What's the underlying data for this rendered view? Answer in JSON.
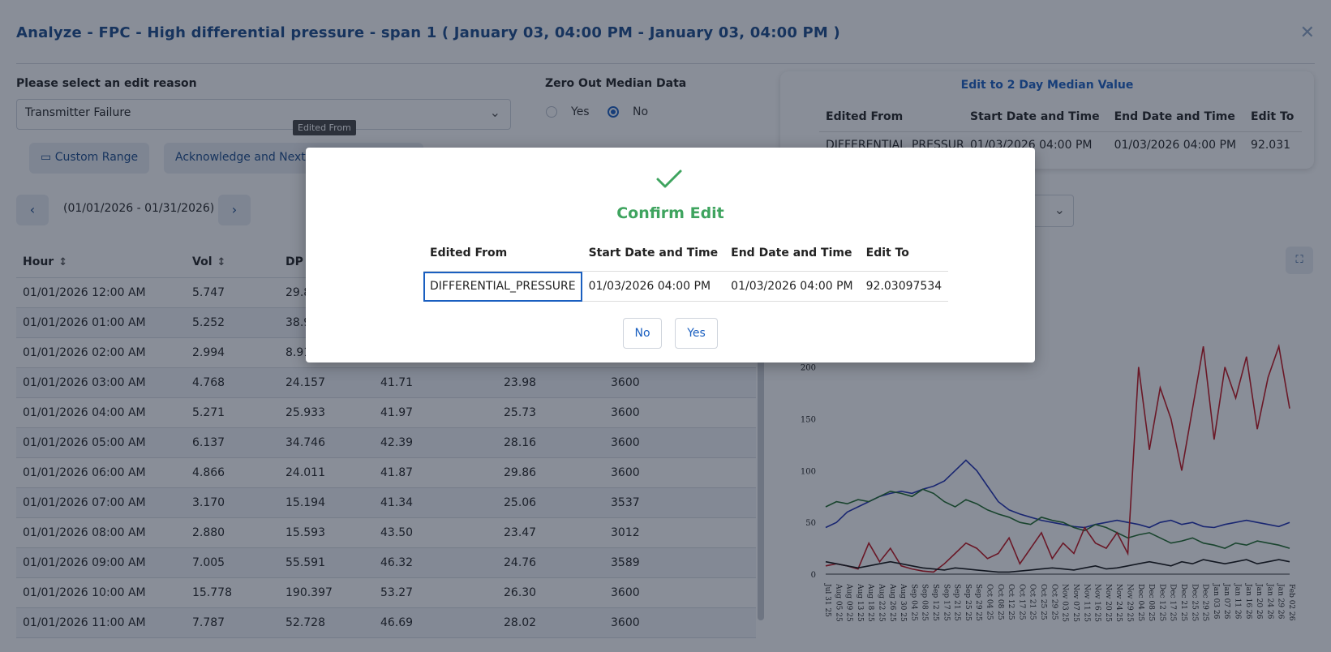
{
  "header": {
    "title": "Analyze - FPC - High differential pressure - span 1 ( January 03, 04:00 PM - January 03, 04:00 PM )",
    "close_icon": "close-icon"
  },
  "form": {
    "reason_label": "Please select an edit reason",
    "reason_value": "Transmitter Failure",
    "zero_label": "Zero Out Median Data",
    "zero_yes": "Yes",
    "zero_no": "No",
    "zero_selected": "No",
    "tooltip": "Edited From"
  },
  "toolbar": {
    "custom_range": "Custom Range",
    "acknowledge": "Acknowledge and Next",
    "date_range": "(01/01/2026 - 01/31/2026)"
  },
  "median_card": {
    "title": "Edit to 2 Day Median Value",
    "headers": [
      "Edited From",
      "Start Date and Time",
      "End Date and Time",
      "Edit To"
    ],
    "row": [
      "DIFFERENTIAL_PRESSURE",
      "01/03/2026 04:00 PM",
      "01/03/2026 04:00 PM",
      "92.031"
    ]
  },
  "table": {
    "headers": [
      "Hour",
      "Vol",
      "DP"
    ],
    "rows": [
      [
        "01/01/2026 12:00 AM",
        "5.747",
        "29.8",
        "",
        "",
        ""
      ],
      [
        "01/01/2026 01:00 AM",
        "5.252",
        "38.9",
        "",
        "",
        ""
      ],
      [
        "01/01/2026 02:00 AM",
        "2.994",
        "8.91",
        "",
        "",
        ""
      ],
      [
        "01/01/2026 03:00 AM",
        "4.768",
        "24.157",
        "41.71",
        "23.98",
        "3600"
      ],
      [
        "01/01/2026 04:00 AM",
        "5.271",
        "25.933",
        "41.97",
        "25.73",
        "3600"
      ],
      [
        "01/01/2026 05:00 AM",
        "6.137",
        "34.746",
        "42.39",
        "28.16",
        "3600"
      ],
      [
        "01/01/2026 06:00 AM",
        "4.866",
        "24.011",
        "41.87",
        "29.86",
        "3600"
      ],
      [
        "01/01/2026 07:00 AM",
        "3.170",
        "15.194",
        "41.34",
        "25.06",
        "3537"
      ],
      [
        "01/01/2026 08:00 AM",
        "2.880",
        "15.593",
        "43.50",
        "23.47",
        "3012"
      ],
      [
        "01/01/2026 09:00 AM",
        "7.005",
        "55.591",
        "46.32",
        "24.76",
        "3589"
      ],
      [
        "01/01/2026 10:00 AM",
        "15.778",
        "190.397",
        "53.27",
        "26.30",
        "3600"
      ],
      [
        "01/01/2026 11:00 AM",
        "7.787",
        "52.728",
        "46.69",
        "28.02",
        "3600"
      ]
    ]
  },
  "chart_data": {
    "type": "line",
    "title": "",
    "ylim": [
      0,
      260
    ],
    "yticks": [
      0,
      50,
      100,
      150,
      200
    ],
    "x": [
      "Jul 31 25",
      "Aug 05 25",
      "Aug 09 25",
      "Aug 13 25",
      "Aug 18 25",
      "Aug 22 25",
      "Aug 26 25",
      "Aug 30 25",
      "Sep 04 25",
      "Sep 08 25",
      "Sep 12 25",
      "Sep 17 25",
      "Sep 21 25",
      "Sep 25 25",
      "Sep 29 25",
      "Oct 04 25",
      "Oct 08 25",
      "Oct 12 25",
      "Oct 17 25",
      "Oct 21 25",
      "Oct 25 25",
      "Oct 29 25",
      "Nov 03 25",
      "Nov 07 25",
      "Nov 11 25",
      "Nov 16 25",
      "Nov 20 25",
      "Nov 24 25",
      "Nov 29 25",
      "Dec 04 25",
      "Dec 08 25",
      "Dec 12 25",
      "Dec 17 25",
      "Dec 21 25",
      "Dec 25 25",
      "Dec 29 25",
      "Jan 03 26",
      "Jan 07 26",
      "Jan 11 26",
      "Jan 16 26",
      "Jan 20 26",
      "Jan 24 26",
      "Jan 29 26",
      "Feb 02 26"
    ],
    "series": [
      {
        "color": "#1f2fb0",
        "values": [
          45,
          50,
          60,
          65,
          70,
          75,
          78,
          80,
          78,
          82,
          85,
          90,
          100,
          110,
          100,
          85,
          70,
          62,
          58,
          55,
          52,
          50,
          48,
          46,
          45,
          48,
          50,
          52,
          50,
          48,
          45,
          50,
          52,
          48,
          50,
          46,
          45,
          48,
          50,
          52,
          50,
          48,
          46,
          50
        ]
      },
      {
        "color": "#1f6b2a",
        "values": [
          65,
          70,
          68,
          72,
          70,
          75,
          80,
          78,
          75,
          82,
          78,
          70,
          65,
          72,
          68,
          62,
          58,
          55,
          50,
          48,
          55,
          52,
          50,
          45,
          42,
          48,
          45,
          40,
          35,
          38,
          40,
          35,
          30,
          32,
          35,
          30,
          28,
          25,
          30,
          28,
          32,
          30,
          28,
          25
        ]
      },
      {
        "color": "#c0121c",
        "values": [
          8,
          10,
          8,
          5,
          30,
          12,
          25,
          8,
          5,
          3,
          2,
          10,
          20,
          30,
          25,
          15,
          20,
          35,
          10,
          25,
          40,
          15,
          30,
          20,
          45,
          30,
          25,
          40,
          20,
          200,
          120,
          180,
          150,
          100,
          160,
          220,
          130,
          200,
          170,
          210,
          140,
          190,
          220,
          160
        ]
      },
      {
        "color": "#111111",
        "values": [
          12,
          10,
          8,
          6,
          8,
          10,
          12,
          10,
          8,
          6,
          5,
          4,
          6,
          5,
          4,
          3,
          2,
          2,
          3,
          4,
          5,
          6,
          5,
          4,
          6,
          8,
          5,
          6,
          8,
          10,
          12,
          10,
          8,
          12,
          10,
          14,
          12,
          10,
          12,
          14,
          10,
          12,
          14,
          12
        ]
      }
    ]
  },
  "modal": {
    "title": "Confirm Edit",
    "headers": [
      "Edited From",
      "Start Date and Time",
      "End Date and Time",
      "Edit To"
    ],
    "row": [
      "DIFFERENTIAL_PRESSURE",
      "01/03/2026 04:00 PM",
      "01/03/2026 04:00 PM",
      "92.03097534"
    ],
    "no_label": "No",
    "yes_label": "Yes",
    "accent": "#3fa45f"
  }
}
